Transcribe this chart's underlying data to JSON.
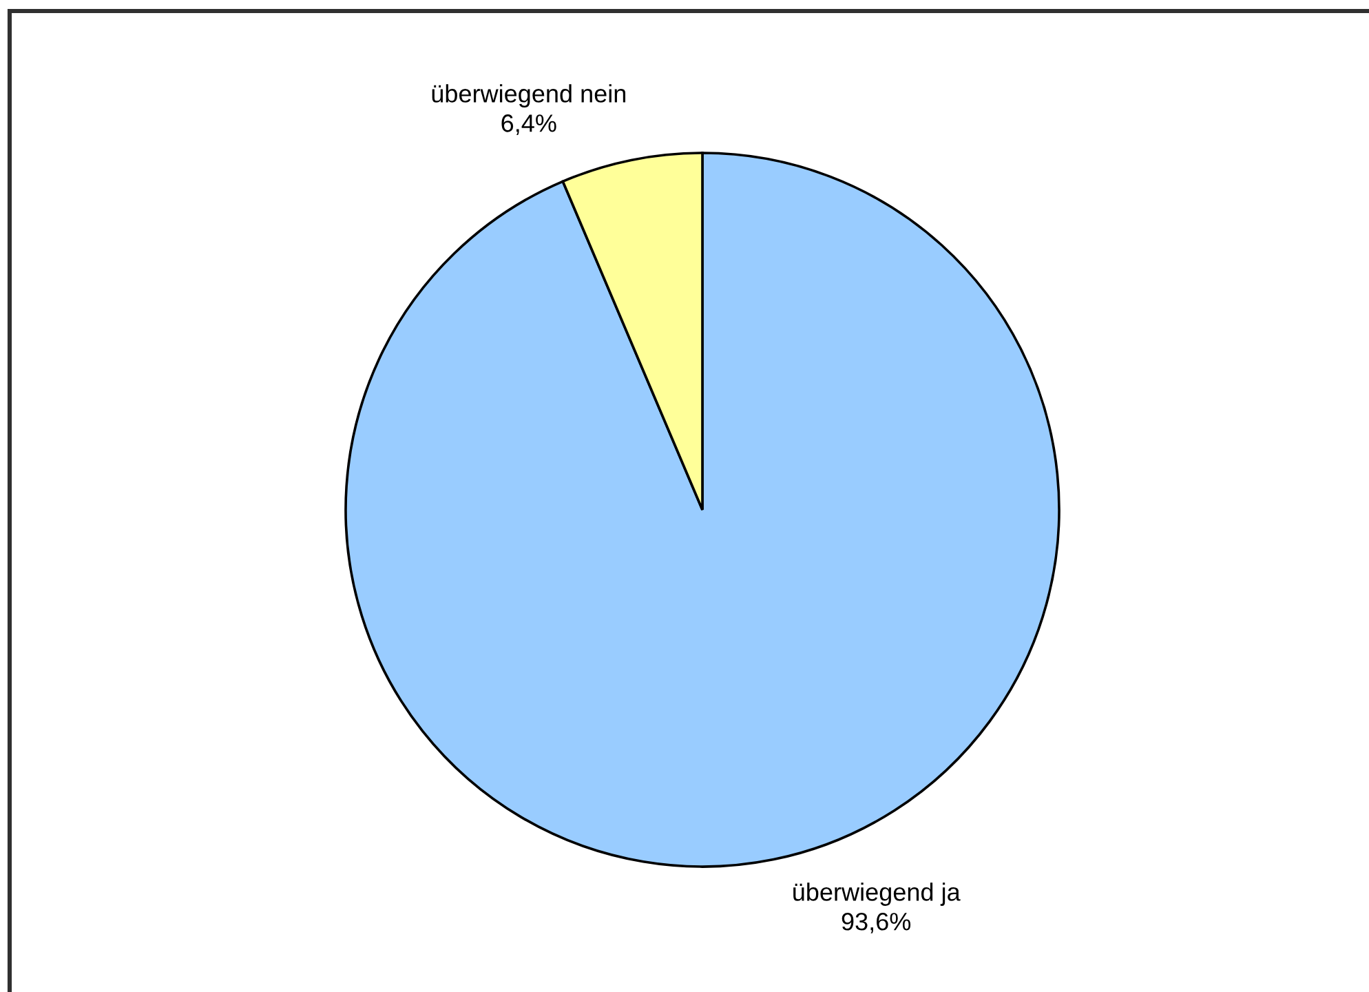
{
  "chart_data": {
    "type": "pie",
    "categories": [
      "überwiegend ja",
      "überwiegend nein"
    ],
    "values": [
      93.6,
      6.4
    ],
    "colors": [
      "#99ccff",
      "#ffff99"
    ],
    "value_labels": [
      "93,6%",
      "6,4%"
    ],
    "legend": false
  }
}
